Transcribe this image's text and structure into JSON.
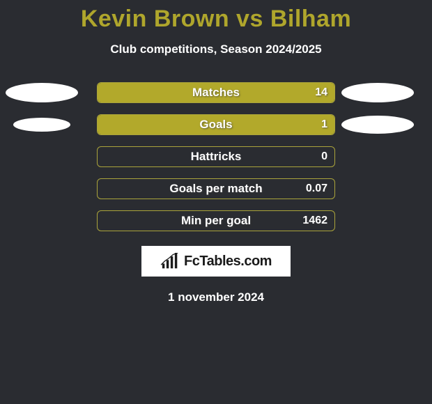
{
  "title": "Kevin Brown vs Bilham",
  "title_color": "#afa62c",
  "subtitle": "Club competitions, Season 2024/2025",
  "background_color": "#2a2c31",
  "bar_border_color": "#aaa43b",
  "bar_fill_color": "#b2a92b",
  "ellipse_color": "#ffffff",
  "text_color": "#ffffff",
  "stats": [
    {
      "label": "Matches",
      "value": "14",
      "fillPercent": 100,
      "showEllipses": true,
      "ellipseLeftW": 104,
      "ellipseLeftH": 28,
      "ellipseRightW": 104,
      "ellipseRightH": 28
    },
    {
      "label": "Goals",
      "value": "1",
      "fillPercent": 100,
      "showEllipses": true,
      "ellipseLeftW": 82,
      "ellipseLeftH": 20,
      "ellipseRightW": 104,
      "ellipseRightH": 26
    },
    {
      "label": "Hattricks",
      "value": "0",
      "fillPercent": 0,
      "showEllipses": false
    },
    {
      "label": "Goals per match",
      "value": "0.07",
      "fillPercent": 0,
      "showEllipses": false
    },
    {
      "label": "Min per goal",
      "value": "1462",
      "fillPercent": 0,
      "showEllipses": false
    }
  ],
  "logo_text": "FcTables.com",
  "date_text": "1 november 2024"
}
